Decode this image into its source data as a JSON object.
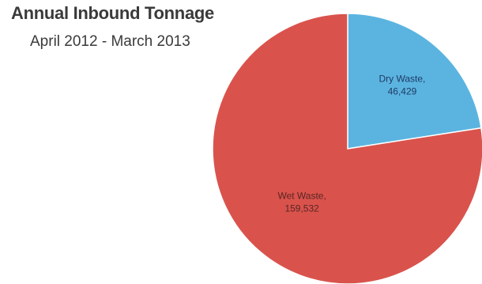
{
  "chart_data": {
    "type": "pie",
    "title": "Annual Inbound Tonnage",
    "subtitle": "April 2012 - March 2013",
    "slices": [
      {
        "label": "Dry Waste,",
        "value_text": "46,429",
        "value": 46429,
        "color": "#5bb4e0",
        "label_color": "#1f3b66"
      },
      {
        "label": "Wet Waste,",
        "value_text": "159,532",
        "value": 159532,
        "color": "#d9534c",
        "label_color": "#5a2424"
      }
    ]
  }
}
